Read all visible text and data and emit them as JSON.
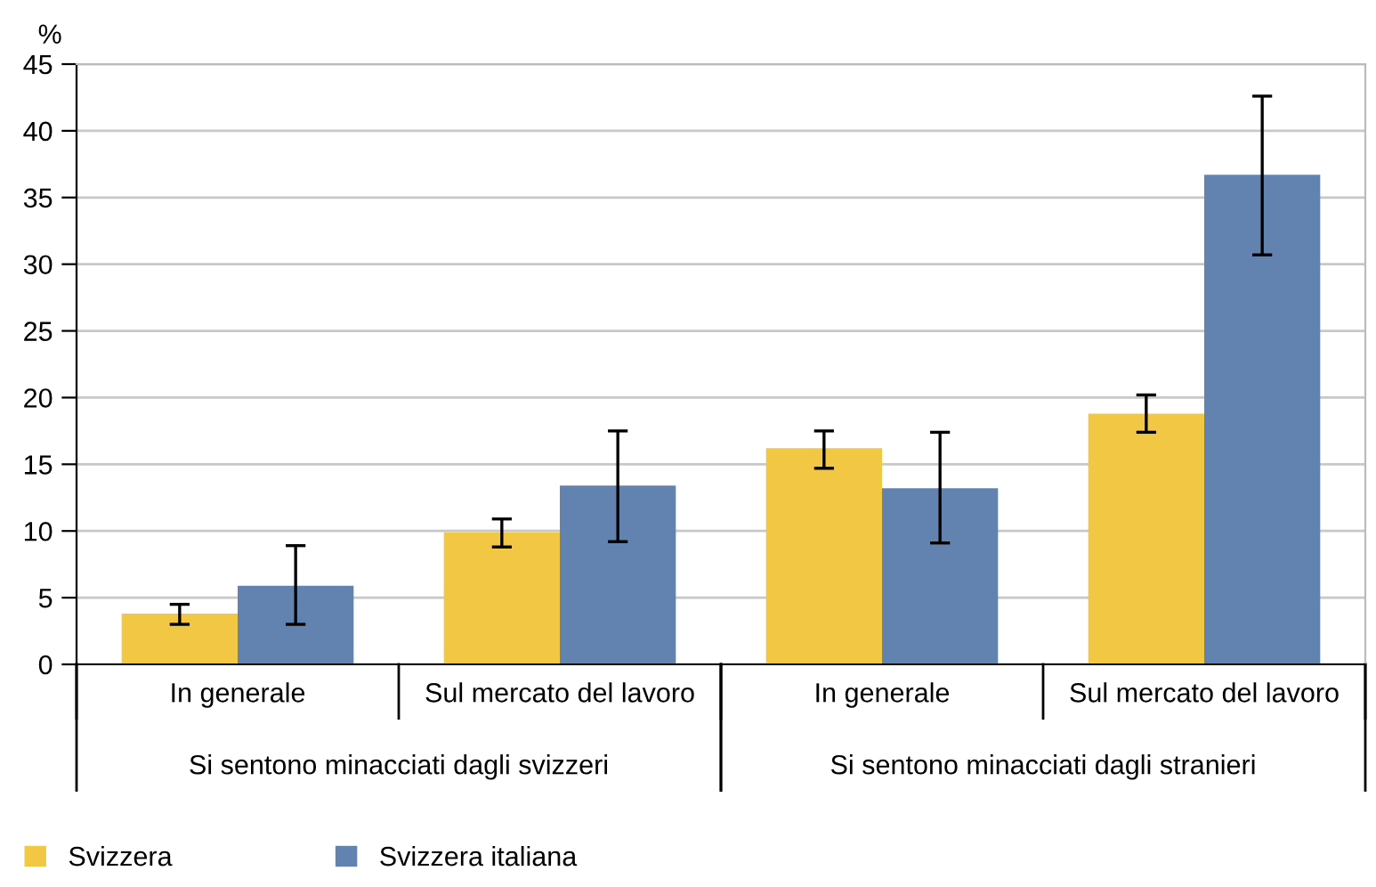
{
  "chart_data": {
    "type": "bar",
    "ylabel": "%",
    "categories": [
      "In generale",
      "Sul mercato del lavoro",
      "In generale",
      "Sul mercato del lavoro"
    ],
    "annotations": [
      "Si sentono minacciati dagli svizzeri",
      "Si sentono minacciati dagli stranieri"
    ],
    "series": [
      {
        "name": "Svizzera",
        "color": "#f2c744",
        "values": [
          3.8,
          9.9,
          16.2,
          18.8
        ],
        "errors": [
          [
            3.0,
            4.5
          ],
          [
            8.8,
            10.9
          ],
          [
            14.7,
            17.5
          ],
          [
            17.4,
            20.2
          ]
        ]
      },
      {
        "name": "Svizzera italiana",
        "color": "#6283b0",
        "values": [
          5.9,
          13.4,
          13.2,
          36.7
        ],
        "errors": [
          [
            3.0,
            8.9
          ],
          [
            9.2,
            17.5
          ],
          [
            9.1,
            17.4
          ],
          [
            30.7,
            42.6
          ]
        ]
      }
    ],
    "ylim": [
      0,
      45
    ],
    "yticks": [
      0,
      5,
      10,
      15,
      20,
      25,
      30,
      35,
      40,
      45
    ],
    "grid": "y",
    "legend": "bottom left"
  }
}
